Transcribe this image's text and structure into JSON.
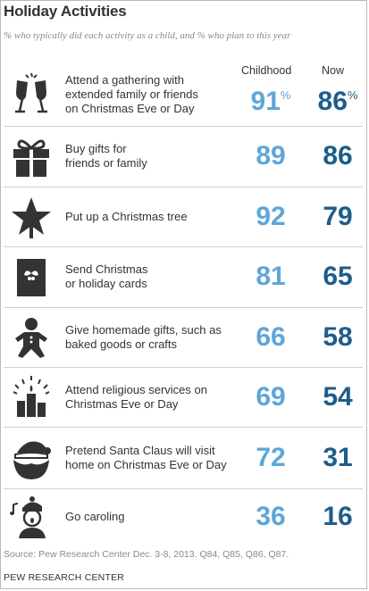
{
  "title": "Holiday Activities",
  "subtitle": "% who typically did each activity as a child, and % who plan to this year",
  "headers": {
    "childhood": "Childhood",
    "now": "Now"
  },
  "percent_sign": "%",
  "chart_data": {
    "type": "table",
    "title": "Holiday Activities",
    "subtitle": "% who typically did each activity as a child, and % who plan to this year",
    "columns": [
      "Childhood",
      "Now"
    ],
    "rows": [
      {
        "icon": "champagne-glasses-icon",
        "label": "Attend a gathering with\nextended family or friends\non Christmas Eve or Day",
        "childhood": 91,
        "now": 86
      },
      {
        "icon": "gift-box-icon",
        "label": "Buy gifts for\nfriends or family",
        "childhood": 89,
        "now": 86
      },
      {
        "icon": "christmas-tree-icon",
        "label": "Put up a Christmas tree",
        "childhood": 92,
        "now": 79
      },
      {
        "icon": "holiday-card-icon",
        "label": "Send Christmas\nor holiday cards",
        "childhood": 81,
        "now": 65
      },
      {
        "icon": "gingerbread-man-icon",
        "label": "Give homemade gifts, such as\nbaked goods or crafts",
        "childhood": 66,
        "now": 58
      },
      {
        "icon": "candles-icon",
        "label": "Attend religious services on\nChristmas Eve or Day",
        "childhood": 69,
        "now": 54
      },
      {
        "icon": "santa-claus-icon",
        "label": "Pretend Santa Claus will visit\nhome on Christmas Eve or Day",
        "childhood": 72,
        "now": 31
      },
      {
        "icon": "caroler-icon",
        "label": "Go caroling",
        "childhood": 36,
        "now": 16
      }
    ],
    "colors": {
      "childhood": "#5ea6d8",
      "now": "#1d5d8a",
      "icon": "#333333"
    }
  },
  "source": "Source: Pew Research Center Dec. 3-8, 2013. Q84, Q85, Q86, Q87.",
  "brand": "PEW RESEARCH CENTER"
}
